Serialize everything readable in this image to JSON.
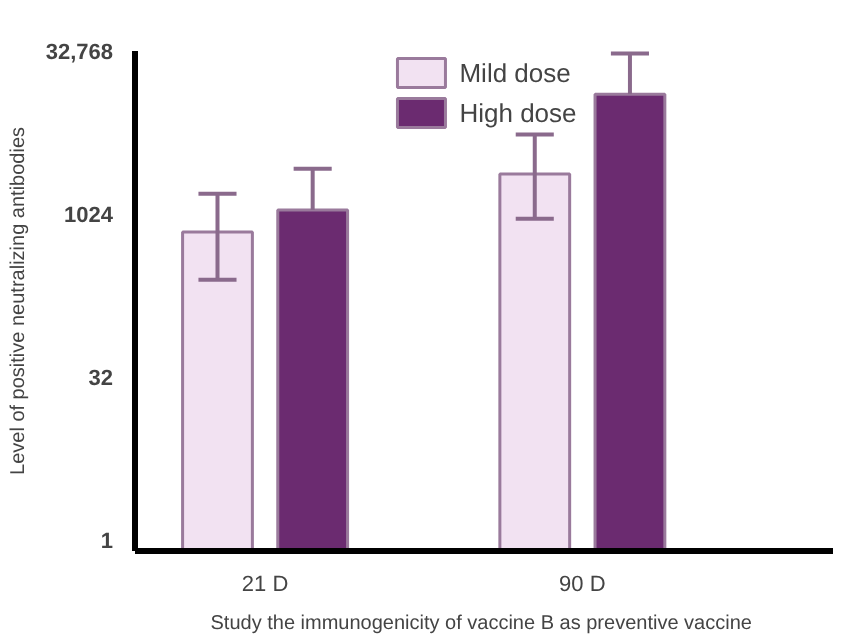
{
  "chart_data": {
    "type": "bar",
    "xlabel": "Study the immunogenicity  of vaccine B as preventive vaccine",
    "ylabel": "Level of positive neutralizing antibodies",
    "categories": [
      "21 D",
      "90 D"
    ],
    "series": [
      {
        "name": "Mild dose",
        "color": "#f2e2f2",
        "values": [
          700,
          2400
        ],
        "errors": [
          [
            254,
            1580
          ],
          [
            930,
            5550
          ]
        ]
      },
      {
        "name": "High dose",
        "color": "#6b2b70",
        "values": [
          1120,
          13100
        ],
        "errors": [
          [
            1120,
            2680
          ],
          [
            13100,
            31000
          ]
        ]
      }
    ],
    "log": "y",
    "ylim": [
      0.8,
      32768
    ],
    "yticks": [
      1,
      32,
      1024,
      {
        "value": 32768,
        "label": "32,768"
      }
    ],
    "grid": false,
    "legend": "top"
  }
}
